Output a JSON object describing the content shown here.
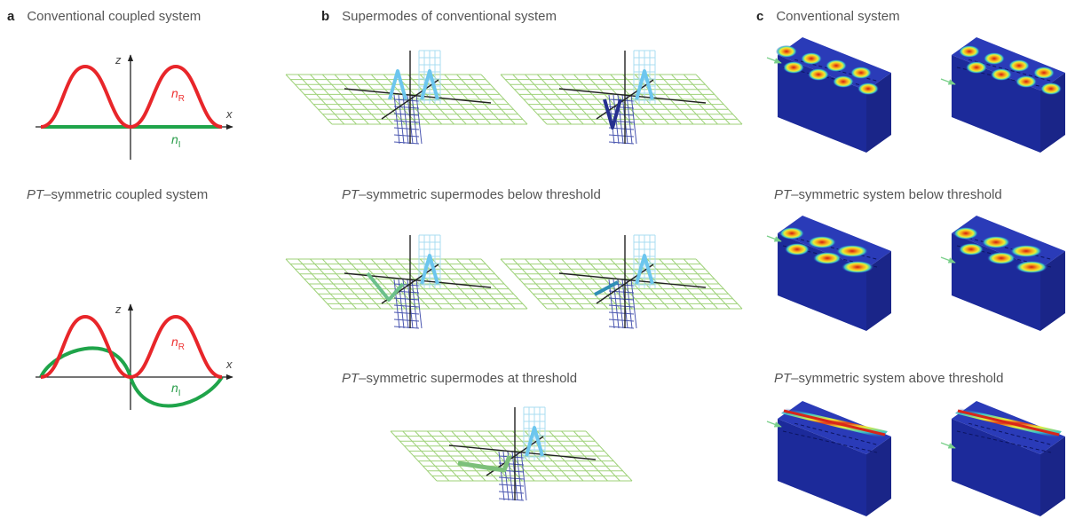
{
  "panel_a": {
    "letter": "a",
    "title_top": "Conventional coupled system",
    "title_bottom_prefix": "PT",
    "title_bottom_rest": "–symmetric coupled system",
    "axis_z": "z",
    "axis_x": "x",
    "n_R": "n",
    "n_R_sub": "R",
    "n_I": "n",
    "n_I_sub": "I"
  },
  "panel_b": {
    "letter": "b",
    "title_1": "Supermodes of conventional system",
    "title_2_prefix": "PT",
    "title_2_rest": "–symmetric supermodes below threshold",
    "title_3_prefix": "PT",
    "title_3_rest": "–symmetric supermodes at threshold"
  },
  "panel_c": {
    "letter": "c",
    "title_1": "Conventional system",
    "title_2_prefix": "PT",
    "title_2_rest": "–symmetric system below threshold",
    "title_3_prefix": "PT",
    "title_3_rest": "–symmetric system above threshold"
  },
  "colors": {
    "red": "#e8262a",
    "green": "#1fa44a",
    "grid_green": "#9fd27a",
    "grid_blue": "#4a56b0",
    "light_blue": "#6cc6ee",
    "dark_blue": "#26308f",
    "box_front": "#1c2a9a",
    "box_top": "#2a3bb8"
  }
}
